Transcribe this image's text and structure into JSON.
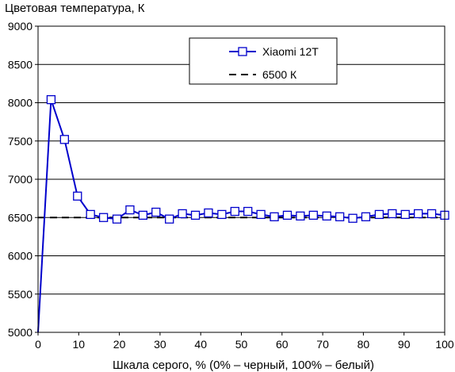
{
  "chart_data": {
    "type": "line",
    "title": "",
    "ylabel": "Цветовая температура, К",
    "xlabel": "Шкала серого, % (0% – черный, 100% – белый)",
    "xlim": [
      0,
      100
    ],
    "ylim": [
      5000,
      9000
    ],
    "x_ticks": [
      0,
      10,
      20,
      30,
      40,
      50,
      60,
      70,
      80,
      90,
      100
    ],
    "y_ticks": [
      5000,
      5500,
      6000,
      6500,
      7000,
      7500,
      8000,
      8500,
      9000
    ],
    "grid": "horizontal",
    "legend_position": "top-right",
    "series": [
      {
        "name": "Xiaomi 12T",
        "color": "#0000cc",
        "marker": "open-square",
        "x": [
          0,
          3.2,
          6.5,
          9.7,
          12.9,
          16.1,
          19.4,
          22.6,
          25.8,
          29.0,
          32.3,
          35.5,
          38.7,
          41.9,
          45.2,
          48.4,
          51.6,
          54.8,
          58.1,
          61.3,
          64.5,
          67.7,
          71.0,
          74.2,
          77.4,
          80.6,
          83.9,
          87.1,
          90.3,
          93.5,
          96.8,
          100
        ],
        "y": [
          5000,
          8040,
          7520,
          6780,
          6540,
          6500,
          6480,
          6600,
          6530,
          6570,
          6480,
          6550,
          6530,
          6560,
          6540,
          6580,
          6580,
          6540,
          6510,
          6530,
          6520,
          6530,
          6520,
          6510,
          6490,
          6510,
          6540,
          6550,
          6540,
          6550,
          6550,
          6530
        ],
        "marker_from_index": 1
      },
      {
        "name": "6500 К",
        "color": "#000000",
        "style": "dashed",
        "x": [
          0,
          100
        ],
        "y": [
          6500,
          6500
        ]
      }
    ]
  }
}
